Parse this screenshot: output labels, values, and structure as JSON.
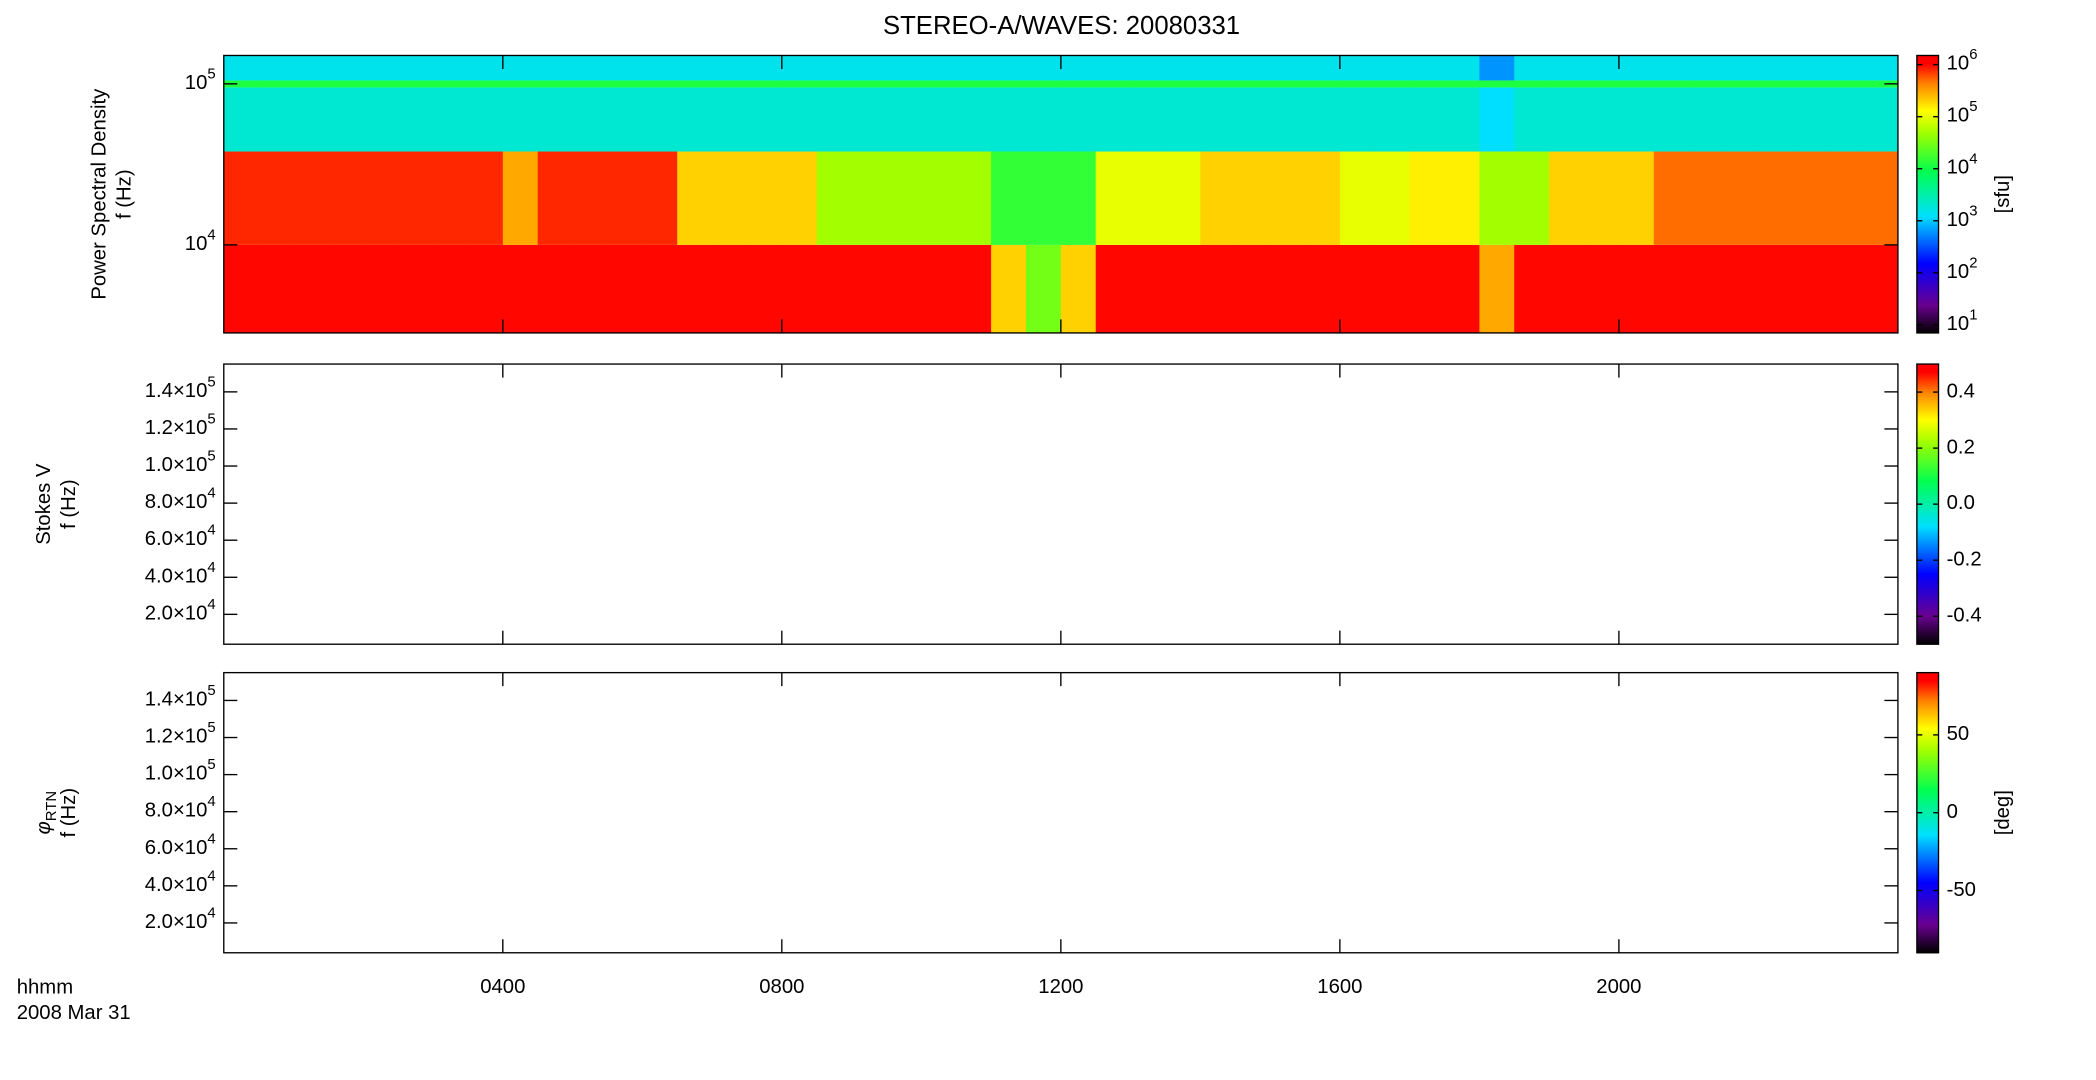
{
  "title": "STEREO-A/WAVES: 20080331",
  "time_axis": {
    "label": "hhmm",
    "date": "2008 Mar 31",
    "xlim": [
      0,
      24
    ],
    "xticks": [
      {
        "value": 4,
        "label": "0400"
      },
      {
        "value": 8,
        "label": "0800"
      },
      {
        "value": 12,
        "label": "1200"
      },
      {
        "value": 16,
        "label": "1600"
      },
      {
        "value": 20,
        "label": "2000"
      }
    ]
  },
  "chart_data": [
    {
      "type": "heatmap",
      "ylabel": "Power Spectral Density",
      "ylabel2": "f (Hz)",
      "ylog": true,
      "ylim": [
        2840,
        150000
      ],
      "yticks": [
        {
          "value": 10000,
          "label": "10",
          "sup": "4"
        },
        {
          "value": 100000,
          "label": "10",
          "sup": "5"
        }
      ],
      "x_edges": [
        0,
        0.5,
        1,
        1.5,
        2,
        2.5,
        3,
        3.5,
        4,
        4.5,
        5,
        5.5,
        6,
        6.5,
        7,
        7.5,
        8,
        8.5,
        9,
        9.5,
        10,
        10.5,
        11,
        11.5,
        12,
        12.5,
        13,
        13.5,
        14,
        14.5,
        15,
        15.5,
        16,
        16.5,
        17,
        17.5,
        18,
        18.5,
        19,
        19.5,
        20,
        20.5,
        21,
        21.5,
        22,
        22.5,
        23,
        23.5,
        24
      ],
      "y_edges": [
        2840,
        10000,
        38000,
        95000,
        105000,
        150000
      ],
      "z": [
        [
          1000000,
          1000000,
          1000000,
          1000000,
          1000000,
          1000000,
          1000000,
          1000000,
          1000000,
          1000000,
          1000000,
          1000000,
          1000000,
          1000000,
          1000000,
          1000000,
          1000000,
          1000000,
          1000000,
          1000000,
          1000000,
          1000000,
          200000,
          30000,
          200000,
          1000000,
          1000000,
          1000000,
          1000000,
          1000000,
          1000000,
          1000000,
          1000000,
          1000000,
          1000000,
          1000000,
          300000,
          1000000,
          1000000,
          1000000,
          1000000,
          1000000,
          1000000,
          1000000,
          1000000,
          1000000,
          1000000,
          1000000
        ],
        [
          800000,
          800000,
          800000,
          800000,
          800000,
          800000,
          800000,
          800000,
          300000,
          800000,
          800000,
          800000,
          800000,
          200000,
          200000,
          200000,
          200000,
          50000,
          50000,
          50000,
          50000,
          50000,
          15000,
          15000,
          15000,
          100000,
          100000,
          100000,
          200000,
          200000,
          200000,
          200000,
          100000,
          100000,
          150000,
          150000,
          50000,
          50000,
          200000,
          200000,
          200000,
          500000,
          500000,
          500000,
          500000,
          500000,
          500000,
          500000
        ],
        [
          2000,
          2000,
          2000,
          2000,
          2000,
          2000,
          2000,
          2000,
          2000,
          2000,
          2000,
          2000,
          2000,
          2000,
          2000,
          2000,
          2000,
          2000,
          2000,
          2000,
          2000,
          2000,
          2000,
          2000,
          2000,
          2000,
          2000,
          2000,
          2000,
          2000,
          2000,
          2000,
          2000,
          2000,
          2000,
          2000,
          1200,
          2000,
          2000,
          2000,
          2000,
          2000,
          2000,
          2000,
          2000,
          2000,
          2000,
          2000
        ],
        [
          12000,
          12000,
          12000,
          12000,
          12000,
          12000,
          12000,
          12000,
          12000,
          12000,
          12000,
          12000,
          12000,
          12000,
          12000,
          12000,
          12000,
          12000,
          12000,
          12000,
          12000,
          12000,
          12000,
          12000,
          12000,
          12000,
          12000,
          12000,
          12000,
          12000,
          12000,
          12000,
          12000,
          12000,
          12000,
          12000,
          12000,
          12000,
          12000,
          12000,
          12000,
          12000,
          12000,
          12000,
          12000,
          12000,
          12000,
          12000
        ],
        [
          1500,
          1500,
          1500,
          1500,
          1500,
          1500,
          1500,
          1500,
          1500,
          1500,
          1500,
          1500,
          1500,
          1500,
          1500,
          1500,
          1500,
          1500,
          1500,
          1500,
          1500,
          1500,
          1500,
          1500,
          1500,
          1500,
          1500,
          1500,
          1500,
          1500,
          1500,
          1500,
          1500,
          1500,
          1500,
          1500,
          600,
          1500,
          1500,
          1500,
          1500,
          1500,
          1500,
          1500,
          1500,
          1500,
          1500,
          1500
        ]
      ],
      "colorbar": {
        "label": "[sfu]",
        "log": true,
        "zlim": [
          7,
          1500000
        ],
        "ticks": [
          {
            "value": 10,
            "label": "10",
            "sup": "1"
          },
          {
            "value": 100,
            "label": "10",
            "sup": "2"
          },
          {
            "value": 1000,
            "label": "10",
            "sup": "3"
          },
          {
            "value": 10000,
            "label": "10",
            "sup": "4"
          },
          {
            "value": 100000,
            "label": "10",
            "sup": "5"
          },
          {
            "value": 1000000,
            "label": "10",
            "sup": "6"
          }
        ]
      }
    },
    {
      "type": "heatmap",
      "ylabel": "Stokes V",
      "ylabel2": "f (Hz)",
      "ylog": false,
      "ylim": [
        3900,
        155000
      ],
      "yticks": [
        {
          "value": 20000,
          "label": "2.0×10",
          "sup": "4"
        },
        {
          "value": 40000,
          "label": "4.0×10",
          "sup": "4"
        },
        {
          "value": 60000,
          "label": "6.0×10",
          "sup": "4"
        },
        {
          "value": 80000,
          "label": "8.0×10",
          "sup": "4"
        },
        {
          "value": 100000,
          "label": "1.0×10",
          "sup": "5"
        },
        {
          "value": 120000,
          "label": "1.2×10",
          "sup": "5"
        },
        {
          "value": 140000,
          "label": "1.4×10",
          "sup": "5"
        }
      ],
      "colorbar": {
        "log": false,
        "zlim": [
          -0.5,
          0.5
        ],
        "ticks": [
          -0.4,
          -0.2,
          {
            "value": 0,
            "label": "0.0"
          },
          0.2,
          0.4
        ]
      }
    },
    {
      "type": "heatmap",
      "ylabel": "φ",
      "ylabel_sub": "RTN",
      "ylabel2": "f (Hz)",
      "ylog": false,
      "ylim": [
        3900,
        155000
      ],
      "yticks": [
        {
          "value": 20000,
          "label": "2.0×10",
          "sup": "4"
        },
        {
          "value": 40000,
          "label": "4.0×10",
          "sup": "4"
        },
        {
          "value": 60000,
          "label": "6.0×10",
          "sup": "4"
        },
        {
          "value": 80000,
          "label": "8.0×10",
          "sup": "4"
        },
        {
          "value": 100000,
          "label": "1.0×10",
          "sup": "5"
        },
        {
          "value": 120000,
          "label": "1.2×10",
          "sup": "5"
        },
        {
          "value": 140000,
          "label": "1.4×10",
          "sup": "5"
        }
      ],
      "colorbar": {
        "label": "[deg]",
        "log": false,
        "zlim": [
          -90,
          90
        ],
        "ticks": [
          -50,
          0,
          50
        ]
      }
    }
  ]
}
